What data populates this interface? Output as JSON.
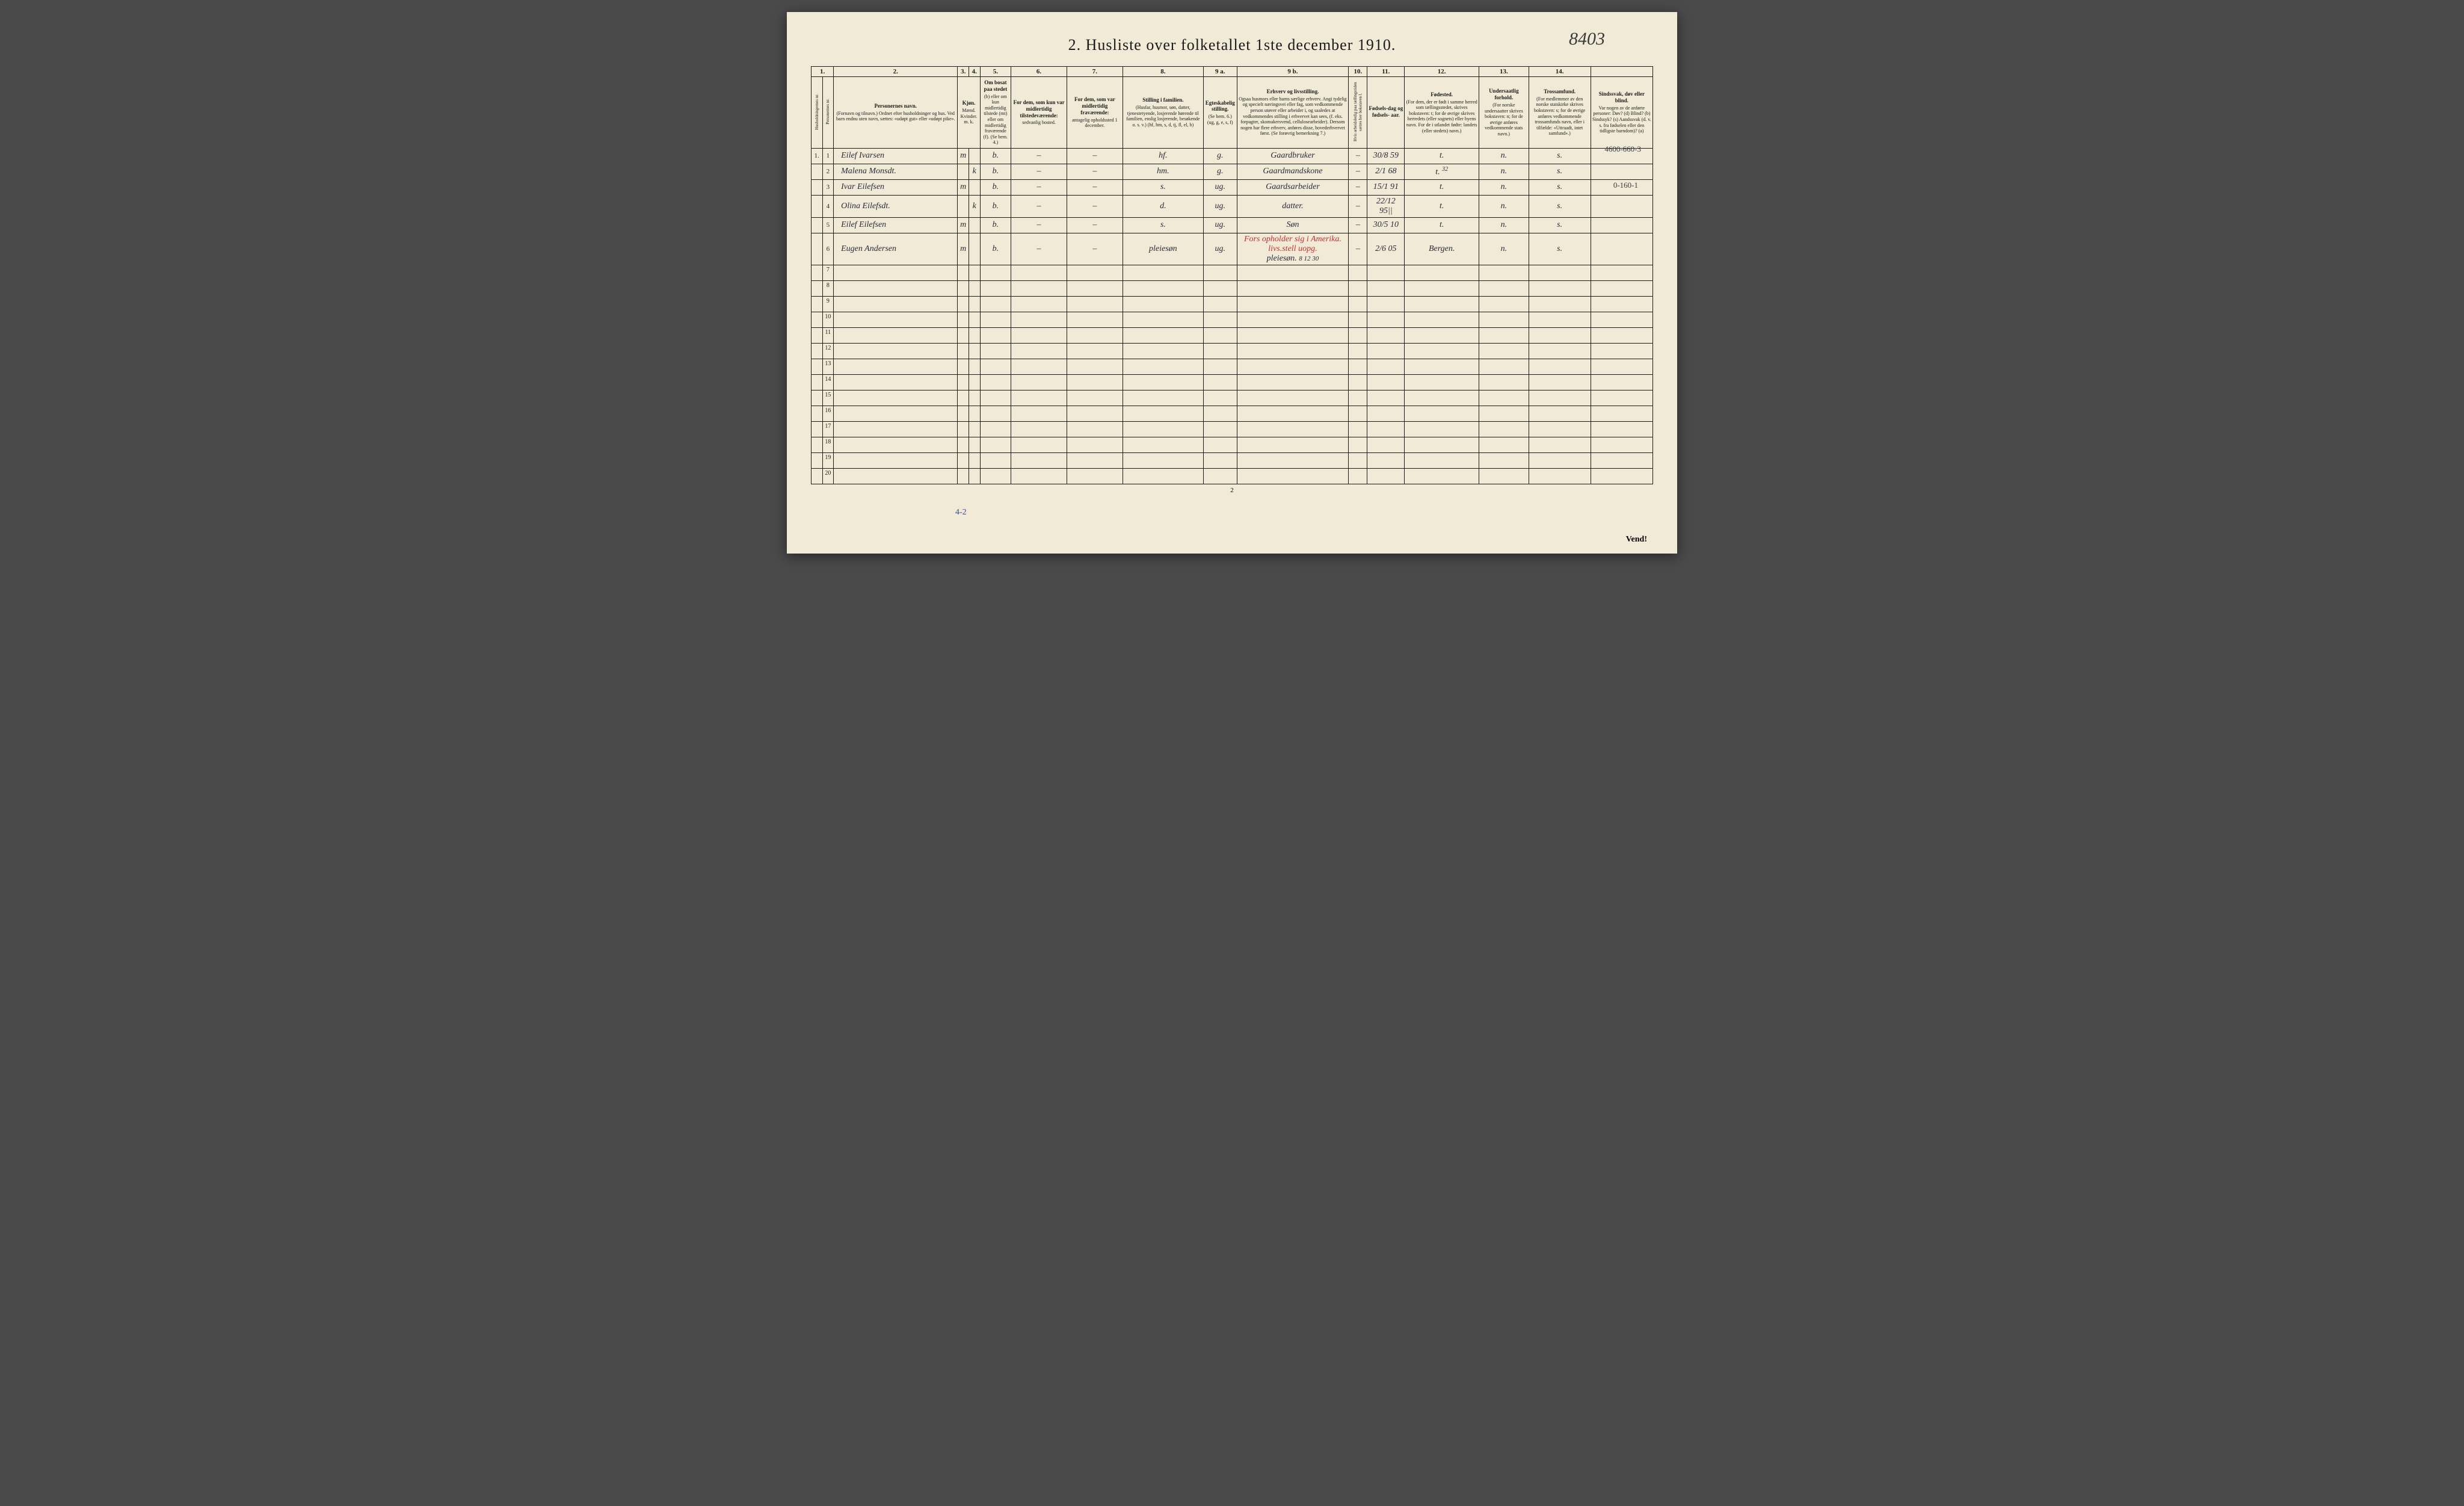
{
  "document": {
    "title": "2. Husliste over folketallet 1ste december 1910.",
    "top_annotation": "8403",
    "page_number_bottom": "2",
    "vend": "Vend!",
    "footer_blue": "4-2",
    "side_annotation_1": "4600-660-3",
    "side_annotation_2": "0-160-1"
  },
  "columns": {
    "numbers": [
      "1.",
      "2.",
      "3.",
      "4.",
      "5.",
      "6.",
      "7.",
      "8.",
      "9 a.",
      "9 b.",
      "10.",
      "11.",
      "12.",
      "13.",
      "14."
    ],
    "h1": "Husholdningernes nr.",
    "h2": "Personernes nr.",
    "h3_main": "Personernes navn.",
    "h3_sub": "(Fornavn og tilnavn.)\nOrdnet efter husholdninger og hus.\nVed barn endnu uten navn, sættes: «udøpt gut» eller «udøpt pike».",
    "h4_main": "Kjøn.",
    "h4_m": "Mænd.",
    "h4_k": "Kvinder.",
    "h4_mk": "m. k.",
    "h5_main": "Om bosat paa stedet",
    "h5_sub": "(b) eller om kun midlertidig tilstede (mt) eller om midlertidig fraværende (f). (Se bem. 4.)",
    "h6_main": "For dem, som kun var midlertidig tilstedeværende:",
    "h6_sub": "sedvanlig bosted.",
    "h7_main": "For dem, som var midlertidig fraværende:",
    "h7_sub": "antagelig opholdssted 1 december.",
    "h8_main": "Stilling i familien.",
    "h8_sub": "(Husfar, husmor, søn, datter, tjenestetyende, losjerende hørende til familien, enslig losjerende, besøkende o. s. v.)\n(hf, hm, s, d, tj, fl, el, b)",
    "h9_main": "Egteskabelig stilling.",
    "h9_sub": "(Se bem. 6.)\n(ug, g, e, s, f)",
    "h10_main": "Erhverv og livsstilling.",
    "h10_sub": "Ogsaa husmors eller barns særlige erhverv. Angi tydelig og specielt næringsvei eller fag, som vedkommende person utøver eller arbeider i, og saaledes at vedkommendes stilling i erhvervet kan sees, (f. eks. forpagter, skomakersvend, cellulosearbeider). Dersom nogen har flere erhverv, anføres disse, hovederhvervet først.\n(Se forøvrig bemerkning 7.)",
    "h11": "Hvis arbeidsledig paa tællingstiden sættes her bokstaven l.",
    "h12_main": "Fødsels-dag og fødsels- aar.",
    "h13_main": "Fødested.",
    "h13_sub": "(For dem, der er født i samme herred som tællingsstedet, skrives bokstaven: t; for de øvrige skrives herredets (eller sognets) eller byens navn. For de i utlandet fødte: landets (eller stedets) navn.)",
    "h14_main": "Undersaatlig forhold.",
    "h14_sub": "(For norske undersaatter skrives bokstaven: n; for de øvrige anføres vedkommende stats navn.)",
    "h15_main": "Trossamfund.",
    "h15_sub": "(For medlemmer av den norske statskirke skrives bokstaven: s; for de øvrige anføres vedkommende trossamfunds navn, eller i tilfælde: «Uttraadt, intet samfund».)",
    "h16_main": "Sindssvak, døv eller blind.",
    "h16_sub": "Var nogen av de anførte personer:\nDøv? (d)\nBlind? (b)\nSindssyk? (s)\nAandssvak (d. v. s. fra fødselen eller den tidligste barndom)? (a)"
  },
  "rows": [
    {
      "hh": "1.",
      "pn": "1",
      "name": "Eilef Ivarsen",
      "sex_m": "m",
      "sex_k": "",
      "bosat": "b.",
      "midl": "–",
      "frav": "–",
      "famstill": "hf.",
      "egte": "g.",
      "erhverv": "Gaardbruker",
      "stats": "–",
      "fodsel": "30/8 59",
      "fodested": "t.",
      "under": "n.",
      "tros": "s.",
      "sinds": ""
    },
    {
      "hh": "",
      "pn": "2",
      "name": "Malena Monsdt.",
      "sex_m": "",
      "sex_k": "k",
      "bosat": "b.",
      "midl": "–",
      "frav": "–",
      "famstill": "hm.",
      "egte": "g.",
      "erhverv": "Gaardmandskone",
      "stats": "–",
      "fodsel": "2/1 68",
      "fodested": "t.",
      "fodested_extra": "32",
      "under": "n.",
      "tros": "s.",
      "sinds": ""
    },
    {
      "hh": "",
      "pn": "3",
      "name": "Ivar Eilefsen",
      "sex_m": "m",
      "sex_k": "",
      "bosat": "b.",
      "midl": "–",
      "frav": "–",
      "famstill": "s.",
      "egte": "ug.",
      "erhverv": "Gaardsarbeider",
      "stats": "–",
      "fodsel": "15/1 91",
      "fodested": "t.",
      "under": "n.",
      "tros": "s.",
      "sinds": ""
    },
    {
      "hh": "",
      "pn": "4",
      "name": "Olina Eilefsdt.",
      "sex_m": "",
      "sex_k": "k",
      "bosat": "b.",
      "midl": "–",
      "frav": "–",
      "famstill": "d.",
      "egte": "ug.",
      "erhverv": "datter.",
      "stats": "–",
      "fodsel": "22/12 95||",
      "fodested": "t.",
      "under": "n.",
      "tros": "s.",
      "sinds": ""
    },
    {
      "hh": "",
      "pn": "5",
      "name": "Eilef Eilefsen",
      "sex_m": "m",
      "sex_k": "",
      "bosat": "b.",
      "midl": "–",
      "frav": "–",
      "famstill": "s.",
      "egte": "ug.",
      "erhverv": "Søn",
      "stats": "–",
      "fodsel": "30/5 10",
      "fodested": "t.",
      "under": "n.",
      "tros": "s.",
      "sinds": ""
    },
    {
      "hh": "",
      "pn": "6",
      "name": "Eugen Andersen",
      "sex_m": "m",
      "sex_k": "",
      "bosat": "b.",
      "midl": "–",
      "frav": "–",
      "famstill": "pleiesøn",
      "egte": "ug.",
      "erhverv": "pleiesøn.",
      "erhverv_red": "Fors opholder sig i Amerika. livs.stell uopg.",
      "erhverv_extra": "8 12 30",
      "stats": "–",
      "fodsel": "2/6 05",
      "fodested": "Bergen.",
      "under": "n.",
      "tros": "s.",
      "sinds": ""
    }
  ],
  "empty_rows": [
    7,
    8,
    9,
    10,
    11,
    12,
    13,
    14,
    15,
    16,
    17,
    18,
    19,
    20
  ],
  "colors": {
    "paper": "#f0ead6",
    "ink": "#1a1a1a",
    "handwriting": "#2a2a3a",
    "red_ink": "#c23030",
    "blue_ink": "#3a4a9a",
    "background": "#4a4a4a"
  }
}
